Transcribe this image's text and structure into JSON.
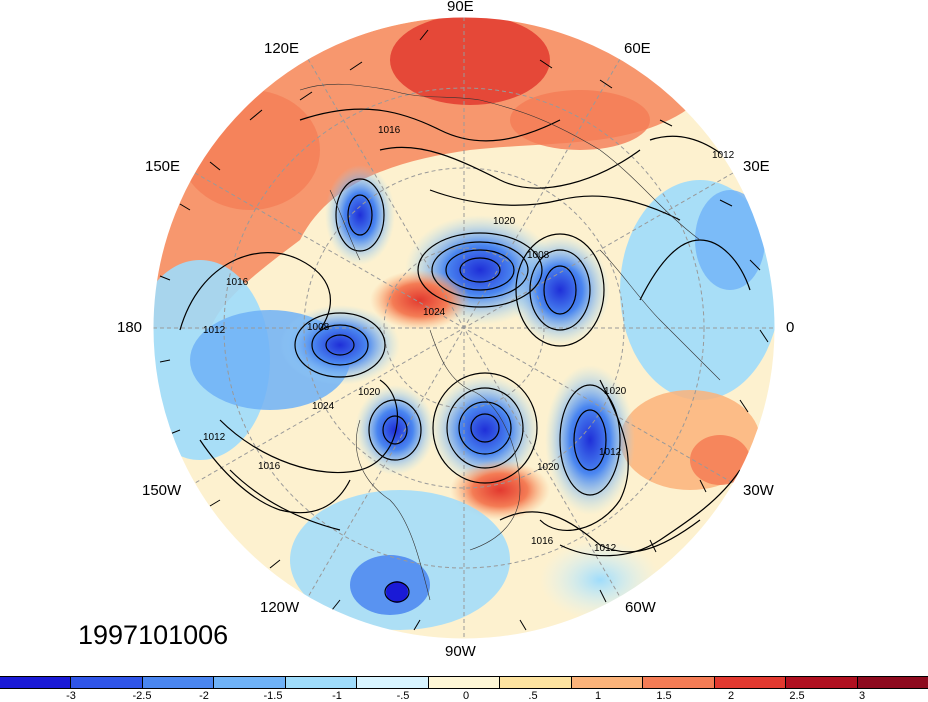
{
  "timestamp": "1997101006",
  "longitude_labels": {
    "e90": "90E",
    "e120": "120E",
    "e60": "60E",
    "e150": "150E",
    "e30": "30E",
    "l180": "180",
    "l0": "0",
    "w150": "150W",
    "w30": "30W",
    "w120": "120W",
    "w60": "60W",
    "w90": "90W"
  },
  "contour_labels": [
    "1016",
    "1012",
    "1020",
    "1008",
    "1016",
    "1012",
    "1008",
    "1020",
    "1024",
    "1020",
    "1012",
    "1016",
    "1012",
    "1012",
    "1016",
    "1024",
    "1020"
  ],
  "colorbar": {
    "colors": [
      "#1a1ad6",
      "#2f55e8",
      "#4a86f0",
      "#6fb2f7",
      "#9fdcfb",
      "#d8f4ff",
      "#fdf6d6",
      "#fde3a0",
      "#fbb37a",
      "#f47c55",
      "#e2392f",
      "#b01020",
      "#8e0a1e"
    ],
    "tick_labels": [
      "-3",
      "-2.5",
      "-2",
      "-1.5",
      "-1",
      "-.5",
      "0",
      ".5",
      "1",
      "1.5",
      "2",
      "2.5",
      "3"
    ]
  },
  "colors": {
    "grid": "#999999",
    "contour": "#000000",
    "wind": "#000000"
  }
}
